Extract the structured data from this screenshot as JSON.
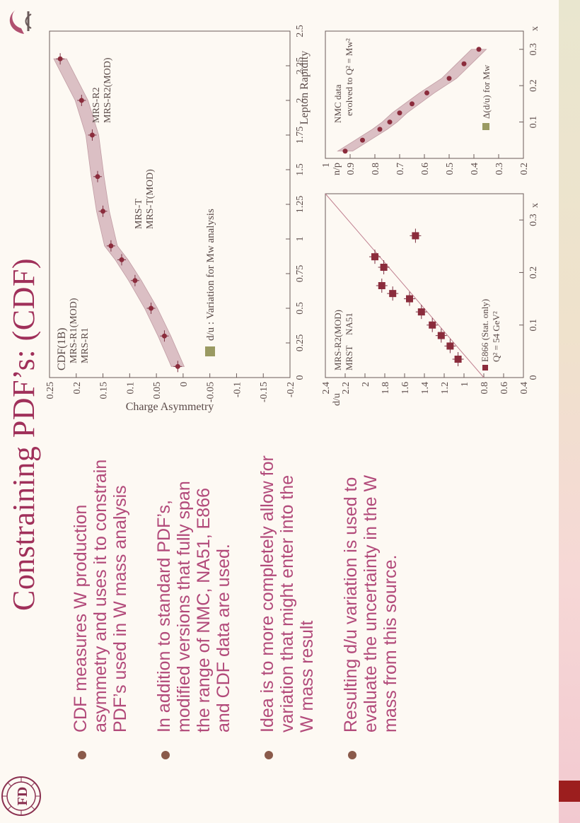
{
  "slide": {
    "title": "Constraining PDF’s: (CDF)",
    "bullets": [
      "CDF measures W production asymmetry and uses it to constrain PDF’s used in W mass analysis",
      "In addition to standard PDF’s, modified versions that fully span the range of NMC, NA51, E866 and CDF data are used.",
      "Idea is to more completely allow for variation that might enter into the W mass result",
      "Resulting d/u variation is used to evaluate the uncertainty in the W mass from this source."
    ]
  },
  "colors": {
    "accent": "#a0305a",
    "bullet_text": "#b24a7a",
    "data": "#8b2c3c",
    "band": "#c59aa6",
    "olive": "#9a9a62"
  },
  "chart_data": [
    {
      "type": "scatter",
      "title": "CDF(1B)",
      "xlabel": "Lepton Rapidity",
      "ylabel": "Charge Asymmetry",
      "xlim": [
        0,
        2.5
      ],
      "ylim": [
        -0.2,
        0.25
      ],
      "xticks": [
        "0",
        "0.25",
        "0.5",
        "0.75",
        "1",
        "1.25",
        "1.5",
        "1.75",
        "2",
        "2.25",
        "2.5"
      ],
      "yticks": [
        "-0.2",
        "-0.15",
        "-0.1",
        "-0.05",
        "0",
        "0.05",
        "0.1",
        "0.15",
        "0.2",
        "0.25"
      ],
      "labels": [
        "MRS-R1(MOD)",
        "MRS-R1",
        "MRS-T",
        "MRS-T(MOD)",
        "MRS-R2",
        "MRS-R2(MOD)"
      ],
      "legend": "d/u : Variation for Mw analysis",
      "x": [
        0.08,
        0.3,
        0.5,
        0.7,
        0.85,
        0.95,
        1.2,
        1.45,
        1.75,
        2.0,
        2.3
      ],
      "y": [
        0.01,
        0.035,
        0.06,
        0.09,
        0.115,
        0.135,
        0.15,
        0.16,
        0.17,
        0.19,
        0.23
      ]
    },
    {
      "type": "scatter",
      "xlabel": "x",
      "ylabel": "d/u",
      "xlim": [
        0,
        0.35
      ],
      "ylim": [
        0.4,
        2.4
      ],
      "xticks": [
        "0",
        "0.1",
        "0.2",
        "0.3"
      ],
      "yticks": [
        "0.4",
        "0.6",
        "0.8",
        "1",
        "1.2",
        "1.4",
        "1.6",
        "1.8",
        "2",
        "2.2",
        "2.4"
      ],
      "labels": [
        "MRS-R2(MOD)",
        "MRST",
        "NA51"
      ],
      "legend": [
        "E866 (Stat. only)",
        "Q² = 54 GeV²"
      ],
      "x": [
        0.035,
        0.06,
        0.08,
        0.1,
        0.125,
        0.15,
        0.16,
        0.175,
        0.21,
        0.23,
        0.27
      ],
      "y": [
        1.06,
        1.14,
        1.23,
        1.32,
        1.43,
        1.55,
        1.72,
        1.83,
        1.81,
        1.9,
        1.49
      ]
    },
    {
      "type": "scatter",
      "xlabel": "x",
      "ylabel": "n/p",
      "xlim": [
        0,
        0.35
      ],
      "ylim": [
        0.2,
        1.0
      ],
      "xticks": [
        "0.1",
        "0.2",
        "0.3"
      ],
      "yticks": [
        "0.2",
        "0.3",
        "0.4",
        "0.5",
        "0.6",
        "0.7",
        "0.8",
        "0.9",
        "1"
      ],
      "labels": [
        "NMC data",
        "evolved to Q² = Mw²"
      ],
      "legend": "Δ(d/u) for Mw",
      "x": [
        0.02,
        0.05,
        0.08,
        0.1,
        0.125,
        0.15,
        0.18,
        0.22,
        0.26,
        0.3
      ],
      "y": [
        0.92,
        0.85,
        0.78,
        0.74,
        0.7,
        0.65,
        0.59,
        0.5,
        0.44,
        0.38
      ]
    }
  ]
}
